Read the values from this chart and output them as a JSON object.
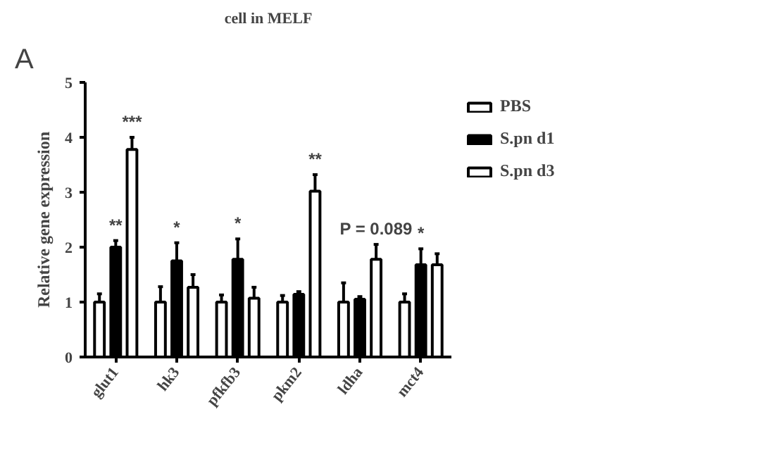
{
  "chart_data": {
    "type": "bar",
    "title": "cell in MELF",
    "ylabel": "Relative gene expression",
    "categories": [
      "glut1",
      "hk3",
      "pfkfb3",
      "pkm2",
      "ldha",
      "mct4"
    ],
    "series": [
      {
        "name": "PBS",
        "color": "#ffffff",
        "values": [
          1.0,
          1.0,
          1.0,
          1.0,
          1.0,
          1.0
        ],
        "errors": [
          [
            1.0,
            1.15
          ],
          [
            1.0,
            1.28
          ],
          [
            1.0,
            1.13
          ],
          [
            1.0,
            1.12
          ],
          [
            1.0,
            1.35
          ],
          [
            1.0,
            1.15
          ]
        ]
      },
      {
        "name": "S.pn d1",
        "color": "#000000",
        "values": [
          2.0,
          1.75,
          1.78,
          1.14,
          1.05,
          1.68
        ],
        "errors": [
          [
            2.0,
            2.12
          ],
          [
            1.75,
            2.08
          ],
          [
            1.78,
            2.15
          ],
          [
            1.14,
            1.19
          ],
          [
            1.05,
            1.1
          ],
          [
            1.68,
            1.97
          ]
        ]
      },
      {
        "name": "S.pn d3",
        "color": "#ffffff",
        "values": [
          3.78,
          1.27,
          1.07,
          3.02,
          1.78,
          1.68
        ],
        "errors": [
          [
            3.78,
            4.0
          ],
          [
            1.27,
            1.5
          ],
          [
            1.07,
            1.27
          ],
          [
            3.02,
            3.32
          ],
          [
            1.78,
            2.05
          ],
          [
            1.68,
            1.88
          ]
        ]
      }
    ],
    "ylim": [
      0,
      5
    ],
    "yticks": [
      0,
      1,
      2,
      3,
      4,
      5
    ],
    "grid": false,
    "legend": "top right",
    "annotations": [
      "A",
      "***",
      "**",
      "P = 0.089",
      {
        "text": "**",
        "x": "glut1",
        "y": 2.12
      },
      {
        "text": "*",
        "x": "hk3",
        "y": 2.08
      },
      {
        "text": "*",
        "x": "pfkfb3",
        "y": 2.15
      },
      {
        "text": "*",
        "x": "mct4",
        "y": 1.97
      }
    ]
  }
}
